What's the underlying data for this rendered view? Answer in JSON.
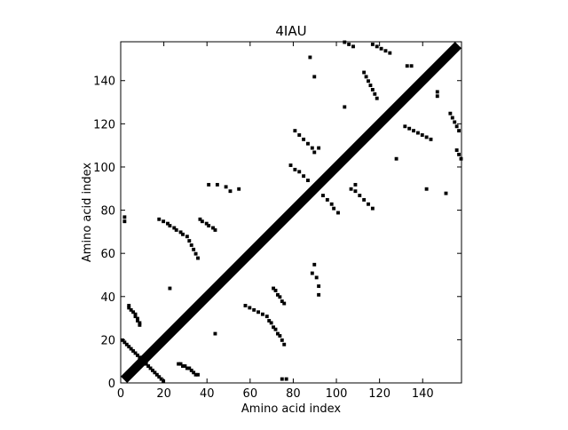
{
  "chart_data": {
    "type": "contact_map",
    "title": "4IAU",
    "xlabel": "Amino acid index",
    "ylabel": "Amino acid index",
    "xlim": [
      0,
      158
    ],
    "ylim": [
      0,
      158
    ],
    "xticks": [
      0,
      20,
      40,
      60,
      80,
      100,
      120,
      140
    ],
    "yticks": [
      0,
      20,
      40,
      60,
      80,
      100,
      120,
      140
    ],
    "symmetric": true,
    "band": 3,
    "color": "#000000",
    "x": [
      11,
      12,
      13,
      14,
      15,
      16,
      17,
      18,
      19,
      26,
      27,
      28,
      29,
      30,
      31,
      32,
      33,
      34,
      35,
      43,
      57,
      59,
      61,
      63,
      65,
      67,
      68,
      69,
      70,
      71,
      72,
      73,
      74,
      75,
      70,
      71,
      72,
      73,
      74,
      75,
      74,
      76,
      89,
      88,
      90,
      91,
      91,
      93,
      95,
      97,
      98,
      100,
      106,
      108,
      110,
      112,
      114,
      116,
      108,
      131,
      133,
      135,
      137,
      139,
      141,
      143,
      127,
      141,
      150,
      152,
      153,
      154,
      155,
      156,
      155,
      156,
      157,
      146,
      146
    ],
    "y": [
      8,
      7,
      6,
      5,
      4,
      3,
      2,
      1,
      0,
      8,
      8,
      7,
      7,
      6,
      6,
      5,
      4,
      3,
      3,
      22,
      35,
      34,
      33,
      32,
      31,
      30,
      28,
      27,
      25,
      24,
      22,
      21,
      19,
      17,
      43,
      42,
      40,
      39,
      37,
      36,
      1,
      1,
      54,
      50,
      48,
      44,
      40,
      86,
      84,
      82,
      80,
      78,
      89,
      88,
      86,
      84,
      82,
      80,
      91,
      118,
      117,
      116,
      115,
      114,
      113,
      112,
      103,
      89,
      87,
      124,
      122,
      120,
      118,
      116,
      107,
      105,
      103,
      134,
      132
    ]
  }
}
